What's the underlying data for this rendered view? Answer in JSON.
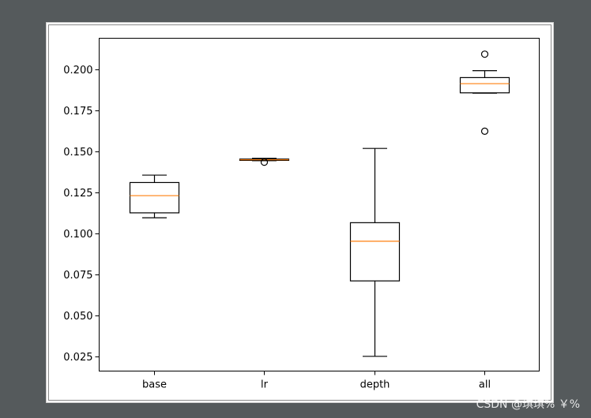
{
  "chart_data": {
    "type": "boxplot",
    "title": "",
    "xlabel": "",
    "ylabel": "",
    "categories": [
      "base",
      "lr",
      "depth",
      "all"
    ],
    "ylim": [
      0.016,
      0.219
    ],
    "yticks": [
      "0.025",
      "0.050",
      "0.075",
      "0.100",
      "0.125",
      "0.150",
      "0.175",
      "0.200"
    ],
    "grid": false,
    "boxes": [
      {
        "label": "base",
        "whisker_low": 0.1095,
        "q1": 0.1125,
        "median": 0.123,
        "q3": 0.131,
        "whisker_high": 0.1355,
        "outliers": []
      },
      {
        "label": "lr",
        "whisker_low": 0.1443,
        "q1": 0.1445,
        "median": 0.1449,
        "q3": 0.1453,
        "whisker_high": 0.1458,
        "outliers": [
          0.1434
        ]
      },
      {
        "label": "depth",
        "whisker_low": 0.025,
        "q1": 0.071,
        "median": 0.0952,
        "q3": 0.1065,
        "whisker_high": 0.1518,
        "outliers": []
      },
      {
        "label": "all",
        "whisker_low": 0.1855,
        "q1": 0.1857,
        "median": 0.1913,
        "q3": 0.195,
        "whisker_high": 0.1992,
        "outliers": [
          0.2093,
          0.1623
        ]
      }
    ],
    "colors": {
      "box": "#000000",
      "median": "#ff7f0e"
    }
  },
  "watermark": "CSDN @琪琪% ￥%"
}
